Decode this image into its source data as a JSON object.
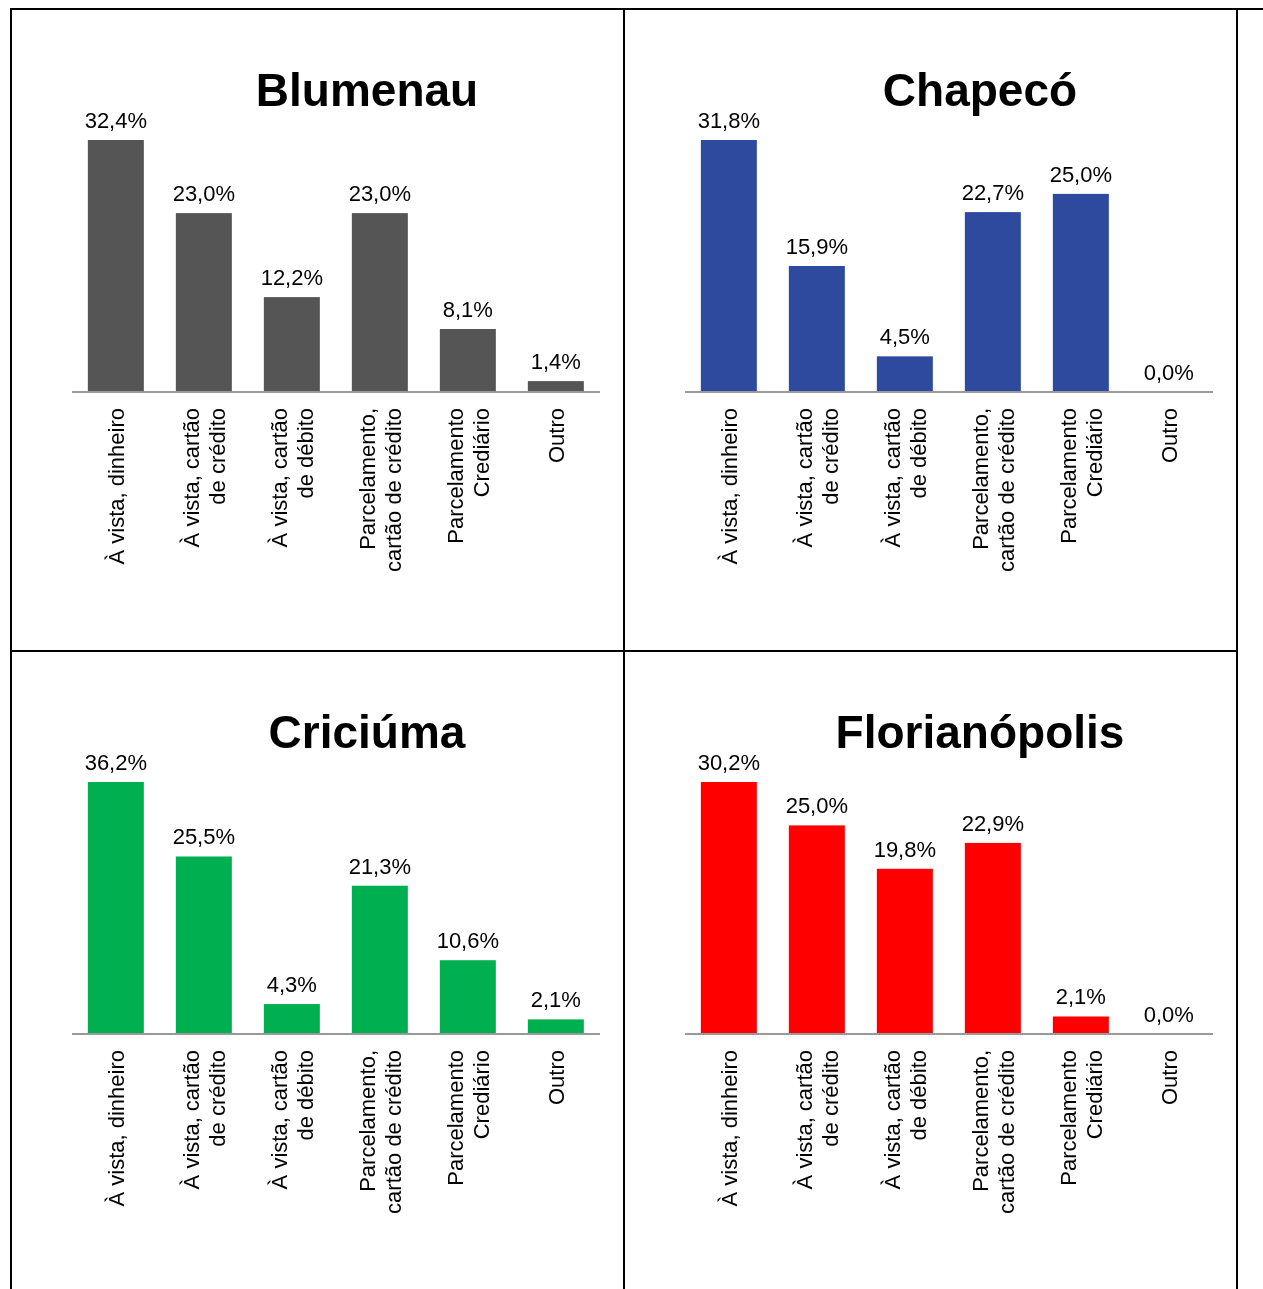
{
  "chart_data": [
    {
      "type": "bar",
      "title": "Blumenau",
      "categories": [
        "À vista, dinheiro",
        "À vista, cartão de crédito",
        "À vista, cartão de débito",
        "Parcelamento, cartão de crédito",
        "Parcelamento Crediário",
        "Outro"
      ],
      "values": [
        32.4,
        23.0,
        12.2,
        23.0,
        8.1,
        1.4
      ],
      "value_labels": [
        "32,4%",
        "23,0%",
        "12,2%",
        "23,0%",
        "8,1%",
        "1,4%"
      ],
      "color": "#555555"
    },
    {
      "type": "bar",
      "title": "Chapecó",
      "categories": [
        "À vista, dinheiro",
        "À vista, cartão de crédito",
        "À vista, cartão de débito",
        "Parcelamento, cartão de crédito",
        "Parcelamento Crediário",
        "Outro"
      ],
      "values": [
        31.8,
        15.9,
        4.5,
        22.7,
        25.0,
        0.0
      ],
      "value_labels": [
        "31,8%",
        "15,9%",
        "4,5%",
        "22,7%",
        "25,0%",
        "0,0%"
      ],
      "color": "#2e4a9e"
    },
    {
      "type": "bar",
      "title": "Criciúma",
      "categories": [
        "À vista, dinheiro",
        "À vista, cartão de crédito",
        "À vista, cartão de débito",
        "Parcelamento, cartão de crédito",
        "Parcelamento Crediário",
        "Outro"
      ],
      "values": [
        36.2,
        25.5,
        4.3,
        21.3,
        10.6,
        2.1
      ],
      "value_labels": [
        "36,2%",
        "25,5%",
        "4,3%",
        "21,3%",
        "10,6%",
        "2,1%"
      ],
      "color": "#00b050"
    },
    {
      "type": "bar",
      "title": "Florianópolis",
      "categories": [
        "À vista, dinheiro",
        "À vista, cartão de crédito",
        "À vista, cartão de débito",
        "Parcelamento, cartão de crédito",
        "Parcelamento Crediário",
        "Outro"
      ],
      "values": [
        30.2,
        25.0,
        19.8,
        22.9,
        2.1,
        0.0
      ],
      "value_labels": [
        "30,2%",
        "25,0%",
        "19,8%",
        "22,9%",
        "2,1%",
        "0,0%"
      ],
      "color": "#ff0000"
    }
  ]
}
